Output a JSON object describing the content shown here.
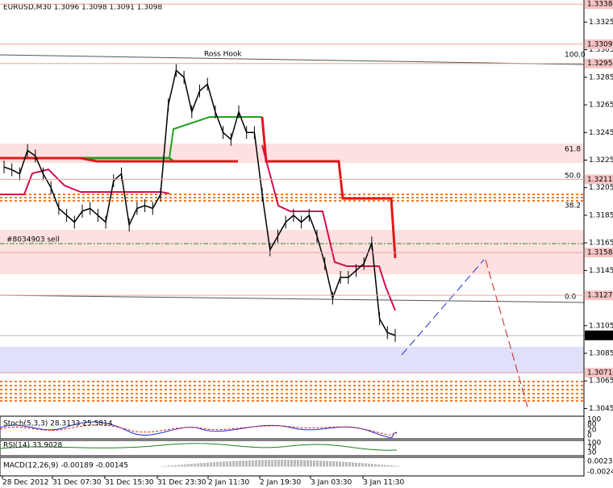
{
  "header": {
    "symbol_info": "EURUSD,M30  1.3096 1.3098 1.3091 1.3098"
  },
  "annotations": {
    "ross_hook": "Ross Hook",
    "order": "#8034903 sell"
  },
  "fibo_labels": [
    "100.0",
    "61.8",
    "50.0",
    "38.2",
    "0.0"
  ],
  "price_axis": {
    "ylim": [
      1.304,
      1.3341
    ],
    "ticks": [
      1.3325,
      1.3305,
      1.3285,
      1.3265,
      1.3245,
      1.3225,
      1.3205,
      1.3185,
      1.3165,
      1.3145,
      1.3105,
      1.3085,
      1.3065,
      1.3045
    ],
    "marked_levels": [
      1.3338,
      1.3309,
      1.3295,
      1.3211,
      1.3158,
      1.3127,
      1.3071
    ],
    "current_price": 1.3098
  },
  "price_series": {
    "closes": [
      1.322,
      1.3218,
      1.3215,
      1.3232,
      1.3228,
      1.3215,
      1.3205,
      1.319,
      1.3185,
      1.318,
      1.3188,
      1.319,
      1.3185,
      1.318,
      1.321,
      1.3215,
      1.3178,
      1.319,
      1.3192,
      1.319,
      1.32,
      1.3265,
      1.329,
      1.3285,
      1.326,
      1.3275,
      1.328,
      1.326,
      1.3245,
      1.324,
      1.326,
      1.3245,
      1.3245,
      1.32,
      1.316,
      1.317,
      1.318,
      1.3185,
      1.318,
      1.3185,
      1.317,
      1.315,
      1.3125,
      1.314,
      1.314,
      1.3145,
      1.315,
      1.3165,
      1.311,
      1.31,
      1.3098
    ]
  },
  "time_axis": [
    "28 Dec 2012",
    "31 Dec 07:30",
    "31 Dec 15:30",
    "31 Dec 23:30",
    "2 Jan 11:30",
    "2 Jan 19:30",
    "3 Jan 03:30",
    "3 Jan 11:30"
  ],
  "indicators": {
    "stoch": {
      "label": "Stoch(5,3,3) 28.3133 25.5814",
      "axis": [
        "100",
        "80",
        "20",
        "0"
      ]
    },
    "rsi": {
      "label": "RSI(14) 33.9028",
      "axis": [
        "100",
        "70",
        "30"
      ]
    },
    "macd": {
      "label": "MACD(12,26,9) -0.00189 -0.00145",
      "axis": [
        "0.00235",
        "-0.0024"
      ]
    }
  }
}
